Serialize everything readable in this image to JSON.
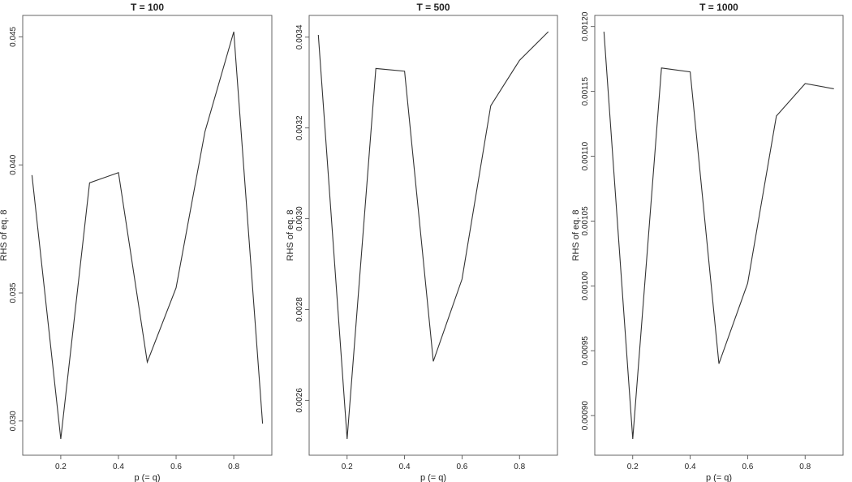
{
  "chart_data": [
    {
      "type": "line",
      "title": "T = 100",
      "xlabel": "p (= q)",
      "ylabel": "RHS of eq. 8",
      "x": [
        0.1,
        0.2,
        0.3,
        0.4,
        0.5,
        0.6,
        0.7,
        0.8,
        0.9
      ],
      "series": [
        {
          "values": [
            0.0396,
            0.0293,
            0.0393,
            0.0397,
            0.0323,
            0.0352,
            0.0413,
            0.0452,
            0.0299
          ]
        }
      ],
      "xlim": [
        0.1,
        0.9
      ],
      "ylim": [
        0.0293,
        0.0452
      ],
      "xticks": [
        0.2,
        0.4,
        0.6,
        0.8
      ],
      "xtick_labels": [
        "0.2",
        "0.4",
        "0.6",
        "0.8"
      ],
      "yticks": [
        0.03,
        0.035,
        0.04,
        0.045
      ],
      "ytick_labels": [
        "0.030",
        "0.035",
        "0.040",
        "0.045"
      ],
      "grid": false
    },
    {
      "type": "line",
      "title": "T = 500",
      "xlabel": "p (= q)",
      "ylabel": "RHS of eq. 8",
      "x": [
        0.1,
        0.2,
        0.3,
        0.4,
        0.5,
        0.6,
        0.7,
        0.8,
        0.9
      ],
      "series": [
        {
          "values": [
            0.003405,
            0.002515,
            0.003331,
            0.003325,
            0.002686,
            0.002867,
            0.003249,
            0.003349,
            0.003412
          ]
        }
      ],
      "xlim": [
        0.1,
        0.9
      ],
      "ylim": [
        0.002515,
        0.003412
      ],
      "xticks": [
        0.2,
        0.4,
        0.6,
        0.8
      ],
      "xtick_labels": [
        "0.2",
        "0.4",
        "0.6",
        "0.8"
      ],
      "yticks": [
        0.0026,
        0.0028,
        0.003,
        0.0032,
        0.0034
      ],
      "ytick_labels": [
        "0.0026",
        "0.0028",
        "0.0030",
        "0.0032",
        "0.0034"
      ],
      "grid": false
    },
    {
      "type": "line",
      "title": "T = 1000",
      "xlabel": "p (= q)",
      "ylabel": "RHS of eq. 8",
      "x": [
        0.1,
        0.2,
        0.3,
        0.4,
        0.5,
        0.6,
        0.7,
        0.8,
        0.9
      ],
      "series": [
        {
          "values": [
            0.001196,
            0.000882,
            0.001168,
            0.001165,
            0.00094,
            0.001002,
            0.001131,
            0.001156,
            0.001152
          ]
        }
      ],
      "xlim": [
        0.1,
        0.9
      ],
      "ylim": [
        0.000882,
        0.001196
      ],
      "xticks": [
        0.2,
        0.4,
        0.6,
        0.8
      ],
      "xtick_labels": [
        "0.2",
        "0.4",
        "0.6",
        "0.8"
      ],
      "yticks": [
        0.0009,
        0.00095,
        0.001,
        0.00105,
        0.0011,
        0.00115,
        0.0012
      ],
      "ytick_labels": [
        "0.00090",
        "0.00095",
        "0.00100",
        "0.00105",
        "0.00110",
        "0.00115",
        "0.00120"
      ],
      "grid": false
    }
  ]
}
